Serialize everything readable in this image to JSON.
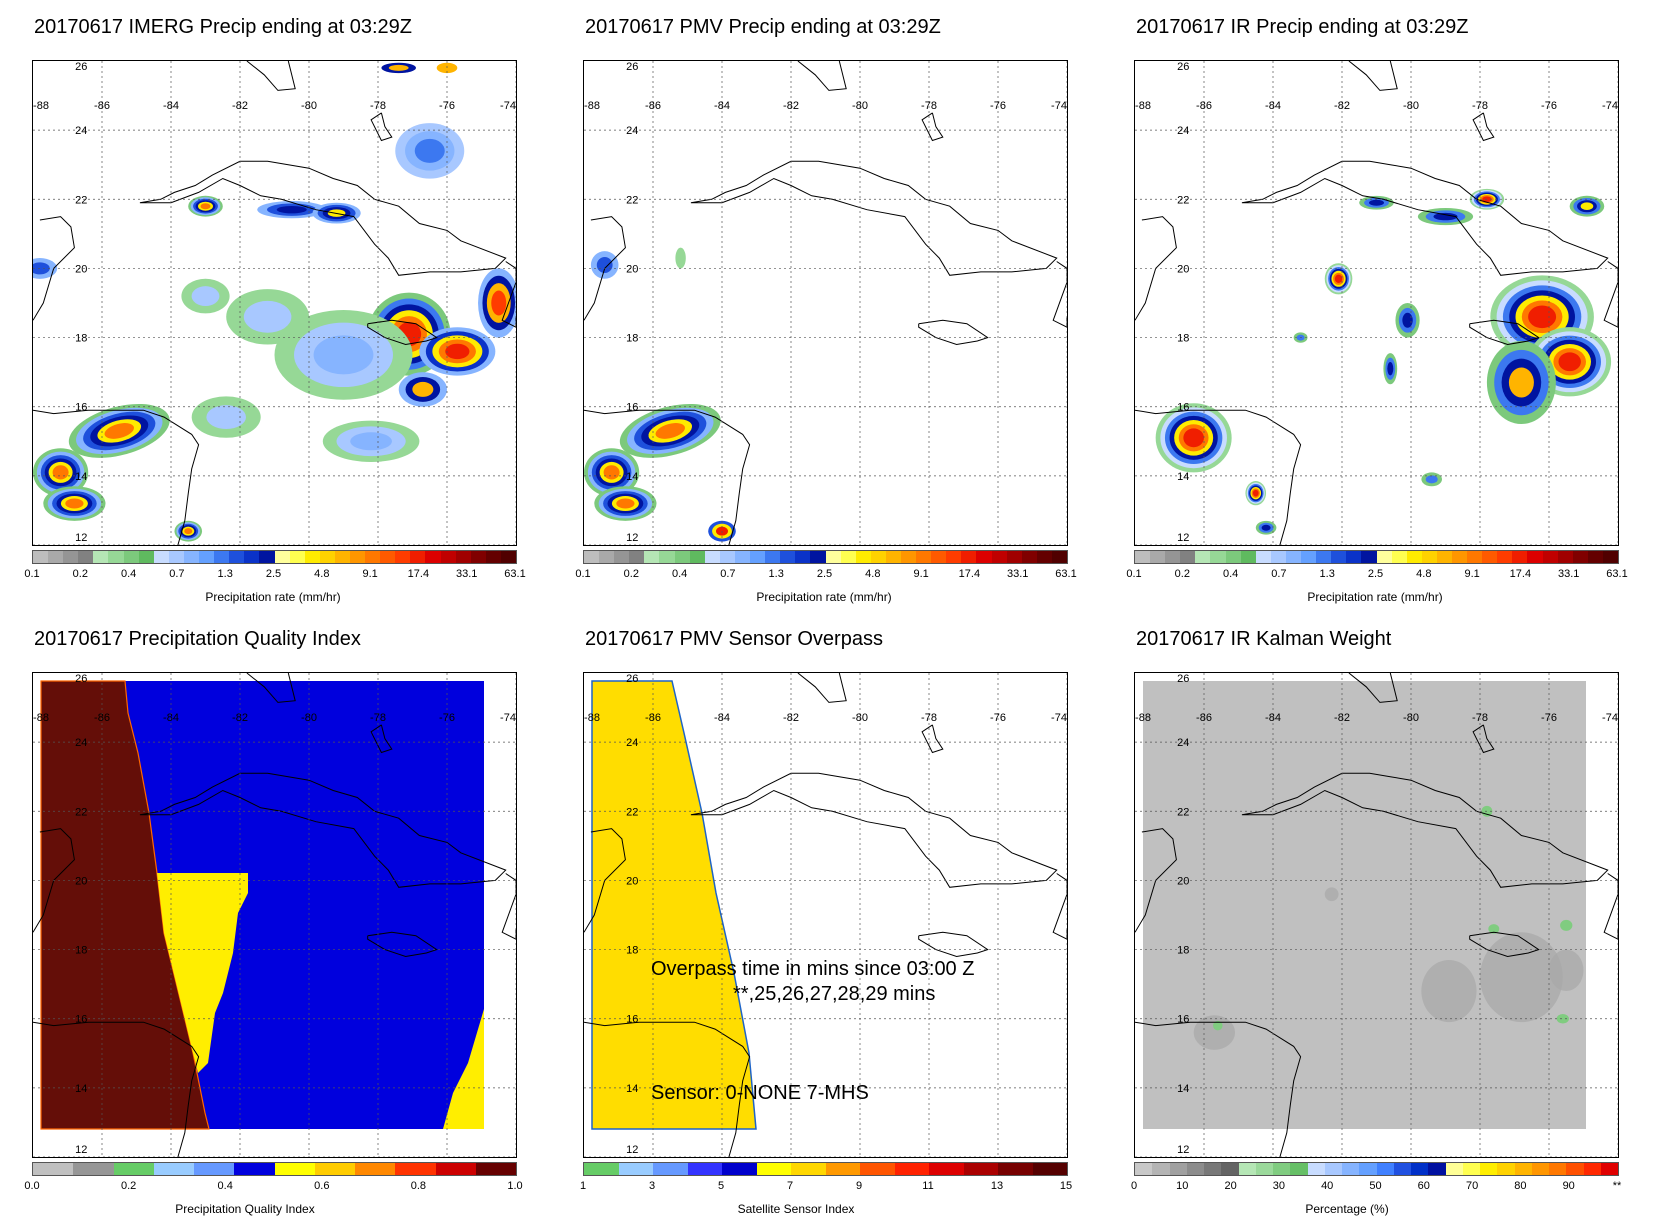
{
  "panels": [
    {
      "id": "imerg",
      "title": "20170617 IMERG Precip ending at 03:29Z",
      "colorbar": "precip",
      "cbar_title": "Precipitation rate (mm/hr)",
      "fill": "precip_imerg"
    },
    {
      "id": "pmv",
      "title": "20170617 PMV Precip ending at 03:29Z",
      "colorbar": "precip",
      "cbar_title": "Precipitation rate (mm/hr)",
      "fill": "precip_pmv"
    },
    {
      "id": "ir",
      "title": "20170617 IR Precip ending at 03:29Z",
      "colorbar": "precip",
      "cbar_title": "Precipitation rate (mm/hr)",
      "fill": "precip_ir"
    },
    {
      "id": "pqi",
      "title": "20170617 Precipitation Quality Index",
      "colorbar": "quality",
      "cbar_title": "Precipitation Quality Index",
      "fill": "quality"
    },
    {
      "id": "overpass",
      "title": "20170617 PMV Sensor Overpass",
      "colorbar": "sensor",
      "cbar_title": "Satellite Sensor Index",
      "fill": "overpass"
    },
    {
      "id": "kalman",
      "title": "20170617 IR Kalman Weight",
      "colorbar": "percent",
      "cbar_title": "Percentage (%)",
      "fill": "kalman"
    }
  ],
  "map_grid": {
    "lon_labels": [
      "-88",
      "-86",
      "-84",
      "-82",
      "-80",
      "-78",
      "-76",
      "-74"
    ],
    "lat_labels": [
      "26",
      "24",
      "22",
      "20",
      "18",
      "16",
      "14",
      "12"
    ]
  },
  "overpass_annotation": {
    "line1": "Overpass time in mins since 03:00 Z",
    "line2": "**,25,26,27,28,29 mins",
    "sensor": "Sensor:   0-NONE  7-MHS"
  },
  "colorbars": {
    "precip": {
      "colors": [
        "#bdbdbd",
        "#a9a9a9",
        "#959595",
        "#818181",
        "#b5e6b5",
        "#96d896",
        "#7cc97c",
        "#5fba5f",
        "#c8dcff",
        "#a8c8ff",
        "#86b4ff",
        "#64a0ff",
        "#3c78f0",
        "#1e50dc",
        "#0a32c8",
        "#0014a0",
        "#ffff9c",
        "#ffff50",
        "#ffeb00",
        "#ffd200",
        "#ffb400",
        "#ff9600",
        "#ff7800",
        "#ff5a00",
        "#ff3c00",
        "#f01e00",
        "#dc0000",
        "#c00000",
        "#a00000",
        "#800000",
        "#640000",
        "#500000"
      ],
      "tick_labels": [
        "0.1",
        "0.2",
        "0.4",
        "0.7",
        "1.3",
        "2.5",
        "4.8",
        "9.1",
        "17.4",
        "33.1",
        "63.1"
      ]
    },
    "quality": {
      "colors": [
        "#c0c0c0",
        "#969696",
        "#66cc66",
        "#99ccff",
        "#6699ff",
        "#0000dd",
        "#ffff00",
        "#ffcc00",
        "#ff8800",
        "#ff3300",
        "#cc0000",
        "#660000"
      ],
      "tick_labels": [
        "0.0",
        "0.2",
        "0.4",
        "0.6",
        "0.8",
        "1.0"
      ]
    },
    "sensor": {
      "colors": [
        "#66cc66",
        "#99ccff",
        "#6699ff",
        "#3333ff",
        "#0000cc",
        "#ffff00",
        "#ffd700",
        "#ff9900",
        "#ff5500",
        "#ff2200",
        "#dd0000",
        "#aa0000",
        "#770000",
        "#550000"
      ],
      "tick_labels": [
        "1",
        "3",
        "5",
        "7",
        "9",
        "11",
        "13",
        "15"
      ]
    },
    "percent": {
      "colors": [
        "#c8c8c8",
        "#b4b4b4",
        "#a0a0a0",
        "#8c8c8c",
        "#787878",
        "#646464",
        "#b5e6b5",
        "#9bd99b",
        "#80cc80",
        "#66bf66",
        "#c8dcff",
        "#a8c8ff",
        "#86b4ff",
        "#64a0ff",
        "#4080ff",
        "#2050e0",
        "#0030c8",
        "#0010a0",
        "#ffff96",
        "#ffff50",
        "#ffee00",
        "#ffd200",
        "#ffb400",
        "#ff9600",
        "#ff7800",
        "#ff5000",
        "#ff2800",
        "#e00000"
      ],
      "tick_labels": [
        "0",
        "10",
        "20",
        "30",
        "40",
        "50",
        "60",
        "70",
        "80",
        "90",
        "**"
      ]
    }
  },
  "colors": {
    "land_outline": "#000000",
    "grid": "#555555",
    "quality_maroon": "#640e08",
    "quality_blue": "#0000dd",
    "quality_yellow": "#ffee00",
    "overpass_yellow": "#ffdd00",
    "kalman_gray": "#c0c0c0"
  }
}
